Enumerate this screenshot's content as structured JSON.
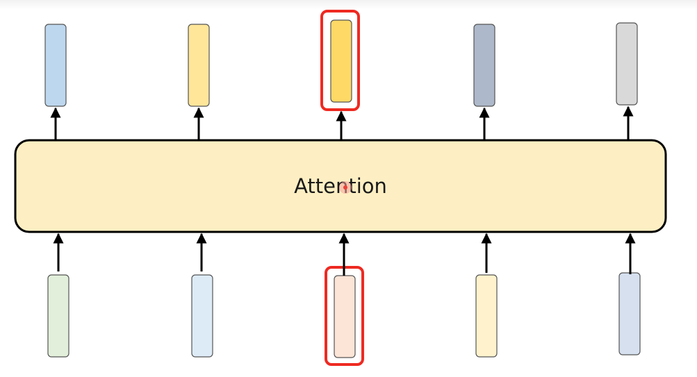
{
  "diagram": {
    "block_label": "Attention",
    "block_color": "#fdefc3",
    "highlight_color": "#ee2a22",
    "cursor_color": "#e8423a",
    "outputs": [
      {
        "color": "#bdd7ee",
        "highlighted": false
      },
      {
        "color": "#ffe699",
        "highlighted": false
      },
      {
        "color": "#ffd966",
        "highlighted": true
      },
      {
        "color": "#adb9ca",
        "highlighted": false
      },
      {
        "color": "#d9d9d9",
        "highlighted": false
      }
    ],
    "inputs": [
      {
        "color": "#e2efda",
        "highlighted": false
      },
      {
        "color": "#ddebf7",
        "highlighted": false
      },
      {
        "color": "#fce4d6",
        "highlighted": true
      },
      {
        "color": "#fff2cc",
        "highlighted": false
      },
      {
        "color": "#d6e0ef",
        "highlighted": false
      }
    ]
  }
}
